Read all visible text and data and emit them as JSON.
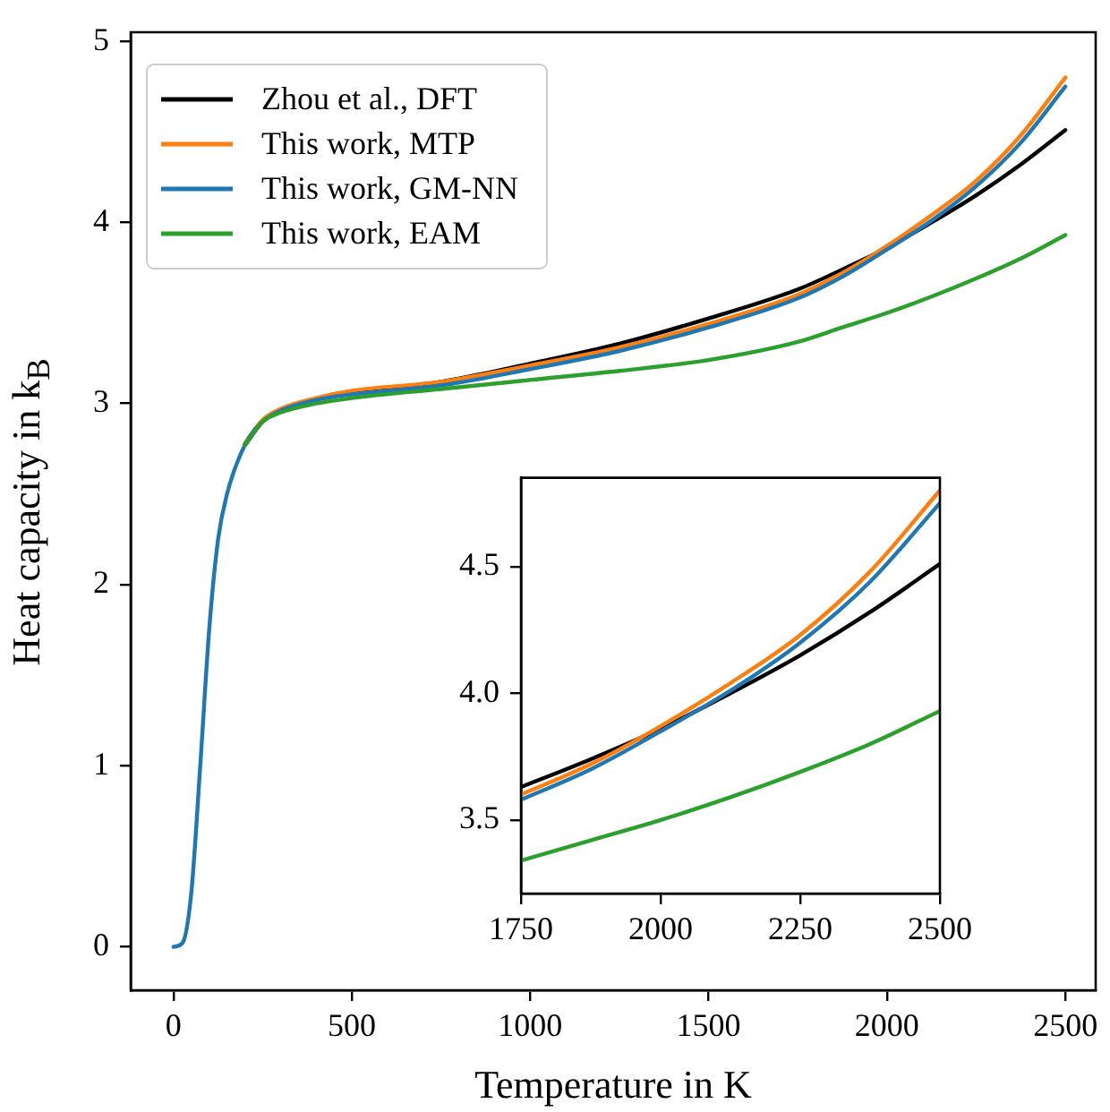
{
  "chart_data": [
    {
      "type": "line",
      "xlabel": "Temperature in K",
      "ylabel": "Heat capacity in k$_{B}$",
      "xlim": [
        -120,
        2585
      ],
      "ylim": [
        -0.24,
        5.05
      ],
      "xticks": [
        0,
        500,
        1000,
        1500,
        2000,
        2500
      ],
      "yticks": [
        0,
        1,
        2,
        3,
        4,
        5
      ],
      "grid": false,
      "legend": "top left",
      "marker": "none",
      "line_style": "solid",
      "x": [
        0,
        25,
        50,
        75,
        100,
        125,
        150,
        200,
        250,
        300,
        400,
        500,
        750,
        1000,
        1250,
        1500,
        1750,
        1875,
        2000,
        2125,
        2250,
        2375,
        2500
      ],
      "series": [
        {
          "name": "Zhou et al., DFT",
          "color": "#000000",
          "values": [
            null,
            null,
            null,
            null,
            null,
            null,
            null,
            2.77,
            2.9,
            2.96,
            3.02,
            3.06,
            3.12,
            3.22,
            3.33,
            3.47,
            3.63,
            3.74,
            3.86,
            4.0,
            4.15,
            4.32,
            4.51
          ]
        },
        {
          "name": "This work, MTP",
          "color": "#ff7f0e",
          "values": [
            null,
            null,
            null,
            null,
            null,
            null,
            null,
            2.78,
            2.91,
            2.97,
            3.03,
            3.07,
            3.12,
            3.21,
            3.31,
            3.44,
            3.6,
            3.72,
            3.87,
            4.04,
            4.23,
            4.48,
            4.8
          ]
        },
        {
          "name": "This work, GM-NN",
          "color": "#1f77b4",
          "values": [
            0,
            0.02,
            0.3,
            1.0,
            1.75,
            2.25,
            2.5,
            2.77,
            2.9,
            2.96,
            3.02,
            3.05,
            3.1,
            3.19,
            3.29,
            3.42,
            3.58,
            3.7,
            3.85,
            4.01,
            4.2,
            4.44,
            4.75
          ]
        },
        {
          "name": "This work, EAM",
          "color": "#2ca02c",
          "values": [
            null,
            null,
            null,
            null,
            null,
            null,
            null,
            2.77,
            2.9,
            2.95,
            3.0,
            3.03,
            3.08,
            3.13,
            3.18,
            3.24,
            3.34,
            3.42,
            3.5,
            3.59,
            3.69,
            3.8,
            3.93
          ]
        }
      ]
    },
    {
      "type": "line",
      "xlim": [
        1750,
        2500
      ],
      "ylim": [
        3.21,
        4.85
      ],
      "xticks": [
        1750,
        2000,
        2250,
        2500
      ],
      "yticks": [
        3.5,
        {
          "value": 4,
          "label": "4.0"
        },
        4.5
      ],
      "grid": false,
      "marker": "none",
      "line_style": "solid",
      "x": [
        1750,
        1875,
        2000,
        2125,
        2250,
        2375,
        2500
      ],
      "series": [
        {
          "color": "#000000",
          "values": [
            3.63,
            3.74,
            3.86,
            4.0,
            4.15,
            4.32,
            4.51
          ]
        },
        {
          "color": "#ff7f0e",
          "values": [
            3.6,
            3.72,
            3.87,
            4.04,
            4.23,
            4.48,
            4.8
          ]
        },
        {
          "color": "#1f77b4",
          "values": [
            3.58,
            3.7,
            3.85,
            4.01,
            4.2,
            4.44,
            4.75
          ]
        },
        {
          "color": "#2ca02c",
          "values": [
            3.34,
            3.42,
            3.5,
            3.59,
            3.69,
            3.8,
            3.93
          ]
        }
      ]
    }
  ]
}
